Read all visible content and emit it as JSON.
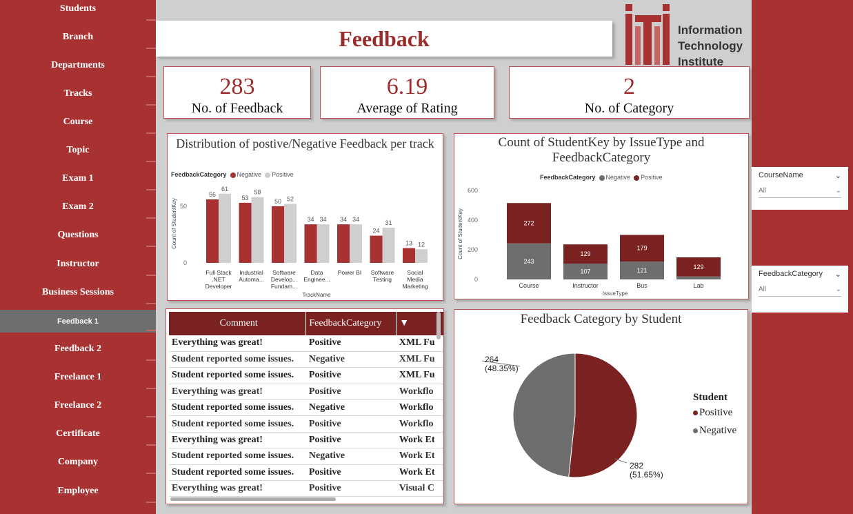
{
  "nav": {
    "items": [
      {
        "label": "Students"
      },
      {
        "label": "Branch"
      },
      {
        "label": "Departments"
      },
      {
        "label": "Tracks"
      },
      {
        "label": "Course"
      },
      {
        "label": "Topic"
      },
      {
        "label": "Exam 1"
      },
      {
        "label": "Exam 2"
      },
      {
        "label": "Questions"
      },
      {
        "label": "Instructor"
      },
      {
        "label": "Business Sessions"
      },
      {
        "label": "Feedback 1"
      },
      {
        "label": "Feedback 2"
      },
      {
        "label": "Freelance 1"
      },
      {
        "label": "Freelance 2"
      },
      {
        "label": "Certificate"
      },
      {
        "label": "Company"
      },
      {
        "label": "Employee"
      }
    ],
    "active": "Feedback 1"
  },
  "page": {
    "title": "Feedback"
  },
  "logo": {
    "line1": "Information",
    "line2": "Technology",
    "line3": "Institute"
  },
  "kpis": [
    {
      "value": "283",
      "label": "No. of Feedback"
    },
    {
      "value": "6.19",
      "label": "Average of Rating"
    },
    {
      "value": "2",
      "label": "No. of Category"
    }
  ],
  "colors": {
    "negative": "#a83232",
    "positive": "#cfcfcf",
    "negative2": "#7a2222",
    "positive2": "#6e6e6e",
    "brand": "#9b2c2c"
  },
  "chart_data": [
    {
      "type": "bar",
      "title": "Distribution of postive/Negative Feedback per track",
      "legend_title": "FeedbackCategory",
      "xlabel": "TrackName",
      "ylabel": "Count of StudentKey",
      "yticks": [
        "0",
        "50"
      ],
      "ylim": [
        0,
        70
      ],
      "categories": [
        "Full Stack .NET Developer",
        "Industrial Automa...",
        "Software Develop... Fundam...",
        "Data Enginee...",
        "Power BI",
        "Software Testing",
        "Social Media Marketing"
      ],
      "category_lines": [
        [
          "Full Stack",
          ".NET",
          "Developer"
        ],
        [
          "Industrial",
          "Automa..."
        ],
        [
          "Software",
          "Develop...",
          "Fundam..."
        ],
        [
          "Data",
          "Enginee..."
        ],
        [
          "Power BI"
        ],
        [
          "Software",
          "Testing"
        ],
        [
          "Social",
          "Media",
          "Marketing"
        ]
      ],
      "series": [
        {
          "name": "Negative",
          "values": [
            56,
            53,
            50,
            34,
            34,
            24,
            13
          ]
        },
        {
          "name": "Positive",
          "values": [
            61,
            58,
            52,
            34,
            34,
            31,
            12
          ]
        }
      ]
    },
    {
      "type": "bar",
      "stacked": true,
      "title": "Count of StudentKey by IssueType and FeedbackCategory",
      "legend_title": "FeedbackCategory",
      "xlabel": "IssueType",
      "ylabel": "Count of StudentKey",
      "yticks": [
        "0",
        "200",
        "400",
        "600"
      ],
      "ylim": [
        0,
        600
      ],
      "categories": [
        "Course",
        "Instructor",
        "Bus",
        "Lab"
      ],
      "series": [
        {
          "name": "Negative",
          "values": [
            243,
            107,
            121,
            20
          ]
        },
        {
          "name": "Positive",
          "values": [
            272,
            129,
            179,
            129
          ]
        }
      ],
      "data_labels": {
        "Negative": [
          "243",
          "107",
          "121",
          ""
        ],
        "Positive": [
          "272",
          "129",
          "179",
          "129"
        ]
      }
    },
    {
      "type": "pie",
      "title": "Feedback Category by Student",
      "legend_title": "Student",
      "slices": [
        {
          "name": "Positive",
          "value": 282,
          "label": "282",
          "pct": "(51.65%)"
        },
        {
          "name": "Negative",
          "value": 264,
          "label": "264",
          "pct": "(48.35%)"
        }
      ]
    }
  ],
  "table": {
    "headers": [
      "Comment",
      "FeedbackCategory"
    ],
    "rows": [
      {
        "comment": "Everything was great!",
        "category": "Positive",
        "extra": "XML Fu",
        "style": "bold"
      },
      {
        "comment": "Student reported some issues.",
        "category": "Negative",
        "extra": "XML Fu",
        "style": "semi"
      },
      {
        "comment": "Student reported some issues.",
        "category": "Positive",
        "extra": "XML Fu",
        "style": "bold"
      },
      {
        "comment": "Everything was great!",
        "category": "Positive",
        "extra": "Workflo",
        "style": "semi"
      },
      {
        "comment": "Student reported some issues.",
        "category": "Negative",
        "extra": "Workflo",
        "style": "bold"
      },
      {
        "comment": "Student reported some issues.",
        "category": "Positive",
        "extra": "Workflo",
        "style": "semi"
      },
      {
        "comment": "Everything was great!",
        "category": "Positive",
        "extra": "Work Et",
        "style": "bold"
      },
      {
        "comment": "Student reported some issues.",
        "category": "Negative",
        "extra": "Work Et",
        "style": "semi"
      },
      {
        "comment": "Student reported some issues.",
        "category": "Positive",
        "extra": "Work Et",
        "style": "bold"
      },
      {
        "comment": "Everything was great!",
        "category": "Positive",
        "extra": "Visual C",
        "style": "semi"
      }
    ]
  },
  "slicers": [
    {
      "title": "CourseName",
      "value": "All"
    },
    {
      "title": "FeedbackCategory",
      "value": "All"
    }
  ]
}
